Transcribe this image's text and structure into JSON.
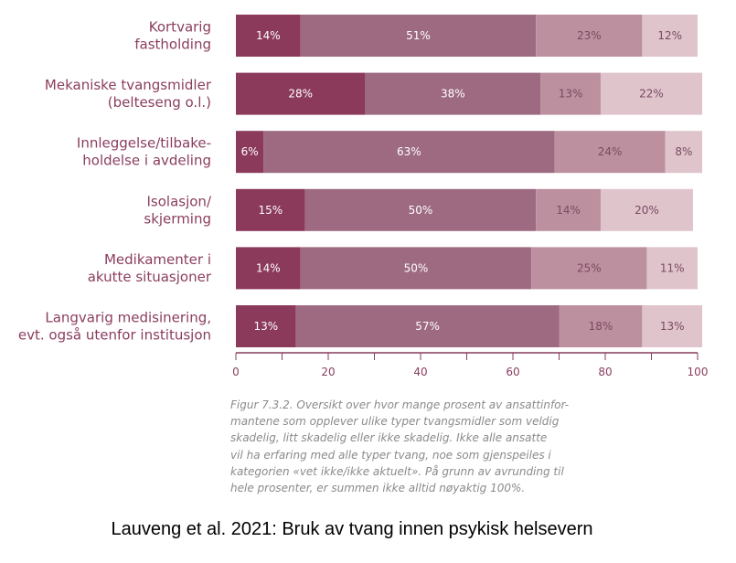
{
  "chart_data": {
    "type": "bar",
    "orientation": "horizontal",
    "stacked": true,
    "categories": [
      [
        "Kortvarig",
        "fastholding"
      ],
      [
        "Mekaniske tvangsmidler",
        "(belteseng o.l.)"
      ],
      [
        "Innleggelse/tilbake-",
        "holdelse i avdeling"
      ],
      [
        "Isolasjon/",
        "skjerming"
      ],
      [
        "Medikamenter i",
        "akutte situasjoner"
      ],
      [
        "Langvarig medisinering,",
        "evt. også utenfor institusjon"
      ]
    ],
    "series": [
      {
        "values": [
          14,
          28,
          6,
          15,
          14,
          13
        ],
        "color": "#8b3a5c"
      },
      {
        "values": [
          51,
          38,
          63,
          50,
          50,
          57
        ],
        "color": "#9d6a82"
      },
      {
        "values": [
          23,
          13,
          24,
          14,
          25,
          18
        ],
        "color": "#bd909f"
      },
      {
        "values": [
          12,
          22,
          8,
          20,
          11,
          13
        ],
        "color": "#dfc4cc"
      }
    ],
    "value_suffix": "%",
    "xlim": [
      0,
      100
    ],
    "xticks": [
      0,
      20,
      40,
      60,
      80,
      100
    ],
    "grid": false,
    "legend": false
  },
  "caption": "Figur 7.3.2. Oversikt over hvor mange prosent av ansattinfor-\nmantene som opplever ulike typer tvangsmidler som veldig\nskadelig, litt skadelig eller ikke skadelig. Ikke alle ansatte\nvil ha erfaring med alle typer tvang, noe som gjenspeiles i\nkategorien «vet ikke/ikke aktuelt». På grunn av avrunding til\nhele prosenter, er summen ikke alltid nøyaktig 100%.",
  "source": "Lauveng et al. 2021: Bruk av tvang innen psykisk helsevern",
  "colors": {
    "axis": "#8a3d5e",
    "category_text": "#8a3d5e",
    "label_on_dark": "#ffffff",
    "label_on_light": "#7a4a60"
  }
}
